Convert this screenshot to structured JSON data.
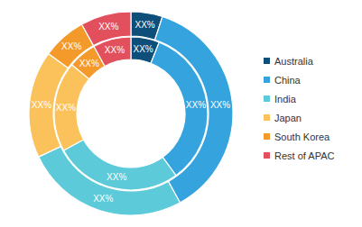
{
  "chart_data": {
    "type": "pie",
    "categories": [
      "Australia",
      "China",
      "India",
      "Japan",
      "South Korea",
      "Rest of APAC"
    ],
    "colors": [
      "#0e4f7a",
      "#35a4de",
      "#5ccad8",
      "#fbc25b",
      "#f39a2b",
      "#e2505e"
    ],
    "series": [
      {
        "values": [
          5,
          37,
          26,
          17,
          7,
          8
        ],
        "value_labels": [
          "XX%",
          "XX%",
          "XX%",
          "XX%",
          "XX%",
          "XX%"
        ]
      },
      {
        "values": [
          6,
          34,
          27,
          19,
          6,
          8
        ],
        "value_labels": [
          "XX%",
          "XX%",
          "XX%",
          "XX%",
          "XX%",
          "XX%"
        ]
      }
    ],
    "data_labels": true,
    "legend": "right"
  }
}
